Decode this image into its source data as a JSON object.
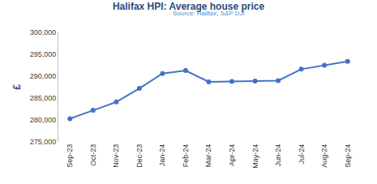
{
  "chart_data": {
    "type": "line",
    "title": "Halifax HPI: Average house price",
    "subtitle": "Source: Halifax, S&P DJI",
    "ylabel": "£",
    "categories": [
      "Sep-23",
      "Oct-23",
      "Nov-23",
      "Dec-23",
      "Jan-24",
      "Feb-24",
      "Mar-24",
      "Apr-24",
      "May-24",
      "Jun-24",
      "Jul-24",
      "Aug-24",
      "Sep-24"
    ],
    "values": [
      280300,
      282200,
      284100,
      287200,
      290600,
      291300,
      288700,
      288800,
      288900,
      289000,
      291600,
      292500,
      293400
    ],
    "color": "#4472c4",
    "marker": "circle",
    "ylim": [
      275000,
      300000
    ],
    "yticks": [
      {
        "value": 275000,
        "label": "275,000"
      },
      {
        "value": 280000,
        "label": "280,000"
      },
      {
        "value": 285000,
        "label": "285,000"
      },
      {
        "value": 290000,
        "label": "290,000"
      },
      {
        "value": 295000,
        "label": "295,000"
      },
      {
        "value": 300000,
        "label": "300,000"
      }
    ],
    "grid": false
  }
}
